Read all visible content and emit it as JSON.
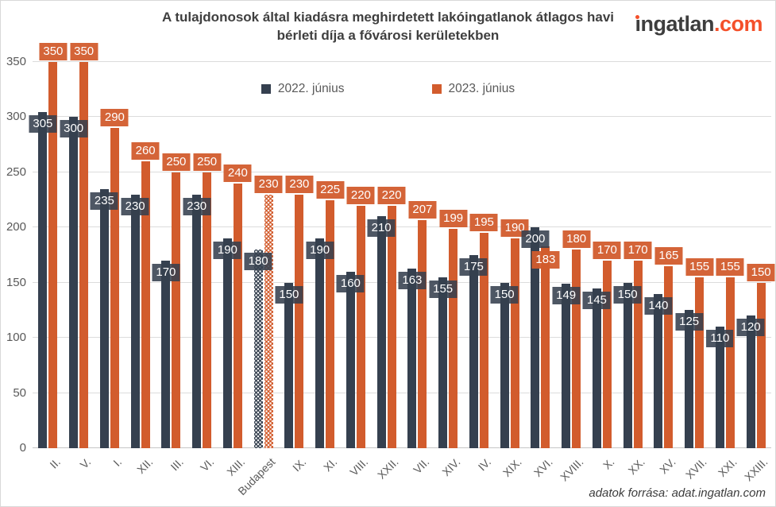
{
  "header": {
    "title": "A tulajdonosok által kiadásra meghirdetett lakóingatlanok átlagos havi bérleti díja a fővárosi kerületekben",
    "logo": {
      "main": "ingatlan",
      "suffix": ".com",
      "accent_color": "#f4502a",
      "text_color": "#3e3e3e"
    }
  },
  "legend": [
    {
      "label": "2022. június",
      "color": "#35404f"
    },
    {
      "label": "2023. június",
      "color": "#d25c2d"
    }
  ],
  "footer": {
    "source": "adatok forrása: adat.ingatlan.com"
  },
  "colors": {
    "series_2022": "#35404f",
    "series_2023": "#d25c2d",
    "grid": "#dcdcdc",
    "axis_text": "#595959",
    "title_text": "#3f3f3f"
  },
  "chart_data": {
    "type": "bar",
    "title": "A tulajdonosok által kiadásra meghirdetett lakóingatlanok átlagos havi bérleti díja a fővárosi kerületekben",
    "categories": [
      "II.",
      "V.",
      "I.",
      "XII.",
      "III.",
      "VI.",
      "XIII.",
      "Budapest",
      "IX.",
      "XI.",
      "VIII.",
      "XXII.",
      "VII.",
      "XIV.",
      "IV.",
      "XIX.",
      "XVI.",
      "XVIII.",
      "X.",
      "XX.",
      "XV.",
      "XVII.",
      "XXI.",
      "XXIII."
    ],
    "series": [
      {
        "name": "2022. június",
        "color": "#35404f",
        "values": [
          305,
          300,
          235,
          230,
          170,
          230,
          190,
          180,
          150,
          190,
          160,
          210,
          163,
          155,
          175,
          150,
          200,
          149,
          145,
          150,
          140,
          125,
          110,
          120
        ]
      },
      {
        "name": "2023. június",
        "color": "#d25c2d",
        "values": [
          350,
          350,
          290,
          260,
          250,
          250,
          240,
          230,
          230,
          225,
          220,
          220,
          207,
          199,
          195,
          190,
          183,
          180,
          170,
          170,
          165,
          155,
          155,
          150
        ]
      }
    ],
    "highlight_category": "Budapest",
    "highlight_style": "white-dot-pattern",
    "xlabel": "",
    "ylabel": "",
    "ylim": [
      0,
      350
    ],
    "yticks": [
      0,
      50,
      100,
      150,
      200,
      250,
      300,
      350
    ],
    "grid": true,
    "legend_position": "top",
    "data_labels": true,
    "source_note": "adatok forrása: adat.ingatlan.com"
  }
}
